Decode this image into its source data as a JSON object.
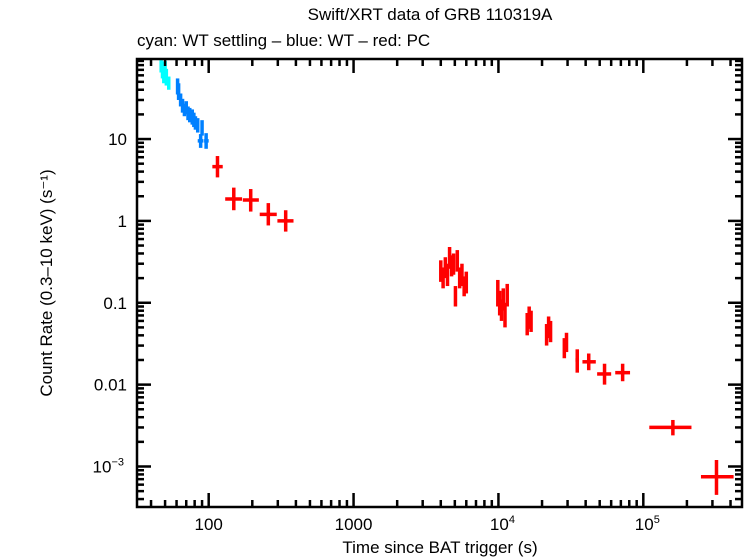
{
  "chart_data": {
    "type": "scatter",
    "title": "Swift/XRT data of GRB 110319A",
    "subtitle": "cyan: WT settling – blue: WT – red: PC",
    "xlabel": "Time since BAT trigger (s)",
    "ylabel": "Count Rate (0.3–10 keV) (s⁻¹)",
    "xscale": "log",
    "yscale": "log",
    "xlim": [
      32,
      480000
    ],
    "ylim": [
      0.00032,
      95
    ],
    "grid": false,
    "legend": "none",
    "x_ticks": [
      {
        "value": 100,
        "label": "100",
        "sup": ""
      },
      {
        "value": 1000,
        "label": "1000",
        "sup": ""
      },
      {
        "value": 10000,
        "label": "10",
        "sup": "4"
      },
      {
        "value": 100000,
        "label": "10",
        "sup": "5"
      }
    ],
    "y_ticks": [
      {
        "value": 10,
        "label": "10",
        "sup": ""
      },
      {
        "value": 1,
        "label": "1",
        "sup": ""
      },
      {
        "value": 0.1,
        "label": "0.1",
        "sup": ""
      },
      {
        "value": 0.01,
        "label": "0.01",
        "sup": ""
      },
      {
        "value": 0.001,
        "label": "10",
        "sup": "−3"
      }
    ],
    "series": [
      {
        "name": "WT settling",
        "color": "#00ffff",
        "points": [
          {
            "t": 47,
            "tlo": 46,
            "thi": 48,
            "r": 80,
            "rlo": 65,
            "rhi": 92
          },
          {
            "t": 48,
            "tlo": 47,
            "thi": 49,
            "r": 70,
            "rlo": 55,
            "rhi": 88
          },
          {
            "t": 49,
            "tlo": 48,
            "thi": 50,
            "r": 62,
            "rlo": 48,
            "rhi": 80
          },
          {
            "t": 50,
            "tlo": 49,
            "thi": 51,
            "r": 75,
            "rlo": 60,
            "rhi": 90
          },
          {
            "t": 51,
            "tlo": 50,
            "thi": 52,
            "r": 58,
            "rlo": 45,
            "rhi": 72
          },
          {
            "t": 53,
            "tlo": 52,
            "thi": 54,
            "r": 48,
            "rlo": 40,
            "rhi": 58
          }
        ]
      },
      {
        "name": "WT",
        "color": "#0080ff",
        "points": [
          {
            "t": 61,
            "tlo": 60,
            "thi": 62,
            "r": 45,
            "rlo": 35,
            "rhi": 55
          },
          {
            "t": 62,
            "tlo": 61,
            "thi": 63,
            "r": 38,
            "rlo": 30,
            "rhi": 48
          },
          {
            "t": 64,
            "tlo": 63,
            "thi": 65,
            "r": 30,
            "rlo": 25,
            "rhi": 36
          },
          {
            "t": 66,
            "tlo": 65,
            "thi": 67,
            "r": 26,
            "rlo": 21,
            "rhi": 31
          },
          {
            "t": 68,
            "tlo": 67,
            "thi": 69,
            "r": 23,
            "rlo": 19,
            "rhi": 27
          },
          {
            "t": 70,
            "tlo": 69,
            "thi": 71,
            "r": 24,
            "rlo": 20,
            "rhi": 29
          },
          {
            "t": 72,
            "tlo": 71,
            "thi": 73,
            "r": 21,
            "rlo": 17,
            "rhi": 25
          },
          {
            "t": 74,
            "tlo": 73,
            "thi": 75,
            "r": 20,
            "rlo": 16,
            "rhi": 24
          },
          {
            "t": 77,
            "tlo": 76,
            "thi": 78,
            "r": 19,
            "rlo": 15,
            "rhi": 23
          },
          {
            "t": 79,
            "tlo": 78,
            "thi": 80,
            "r": 17,
            "rlo": 14,
            "rhi": 21
          },
          {
            "t": 81,
            "tlo": 80,
            "thi": 82,
            "r": 16,
            "rlo": 13,
            "rhi": 19
          },
          {
            "t": 84,
            "tlo": 83,
            "thi": 85,
            "r": 15,
            "rlo": 12,
            "rhi": 18
          },
          {
            "t": 90,
            "tlo": 88,
            "thi": 92,
            "r": 14,
            "rlo": 11,
            "rhi": 17
          },
          {
            "t": 88,
            "tlo": 84,
            "thi": 92,
            "r": 9.5,
            "rlo": 7.8,
            "rhi": 11.5
          },
          {
            "t": 96,
            "tlo": 93,
            "thi": 100,
            "r": 9.5,
            "rlo": 7.6,
            "rhi": 11.8
          }
        ]
      },
      {
        "name": "PC",
        "color": "#ff0000",
        "points": [
          {
            "t": 115,
            "tlo": 106,
            "thi": 125,
            "r": 4.6,
            "rlo": 3.4,
            "rhi": 6.2
          },
          {
            "t": 149,
            "tlo": 130,
            "thi": 170,
            "r": 1.85,
            "rlo": 1.35,
            "rhi": 2.55
          },
          {
            "t": 195,
            "tlo": 172,
            "thi": 222,
            "r": 1.8,
            "rlo": 1.3,
            "rhi": 2.45
          },
          {
            "t": 258,
            "tlo": 225,
            "thi": 295,
            "r": 1.2,
            "rlo": 0.88,
            "rhi": 1.65
          },
          {
            "t": 340,
            "tlo": 298,
            "thi": 385,
            "r": 1.0,
            "rlo": 0.74,
            "rhi": 1.35
          },
          {
            "t": 4000,
            "tlo": 3950,
            "thi": 4050,
            "r": 0.25,
            "rlo": 0.18,
            "rhi": 0.33
          },
          {
            "t": 4150,
            "tlo": 4100,
            "thi": 4200,
            "r": 0.2,
            "rlo": 0.15,
            "rhi": 0.27
          },
          {
            "t": 4300,
            "tlo": 4250,
            "thi": 4350,
            "r": 0.27,
            "rlo": 0.2,
            "rhi": 0.36
          },
          {
            "t": 4450,
            "tlo": 4400,
            "thi": 4500,
            "r": 0.22,
            "rlo": 0.16,
            "rhi": 0.3
          },
          {
            "t": 4600,
            "tlo": 4550,
            "thi": 4650,
            "r": 0.35,
            "rlo": 0.26,
            "rhi": 0.48
          },
          {
            "t": 4750,
            "tlo": 4700,
            "thi": 4800,
            "r": 0.28,
            "rlo": 0.21,
            "rhi": 0.38
          },
          {
            "t": 4900,
            "tlo": 4850,
            "thi": 4950,
            "r": 0.3,
            "rlo": 0.22,
            "rhi": 0.4
          },
          {
            "t": 5050,
            "tlo": 5000,
            "thi": 5100,
            "r": 0.12,
            "rlo": 0.09,
            "rhi": 0.16
          },
          {
            "t": 5200,
            "tlo": 5150,
            "thi": 5250,
            "r": 0.33,
            "rlo": 0.24,
            "rhi": 0.44
          },
          {
            "t": 5400,
            "tlo": 5350,
            "thi": 5450,
            "r": 0.2,
            "rlo": 0.15,
            "rhi": 0.27
          },
          {
            "t": 5600,
            "tlo": 5550,
            "thi": 5650,
            "r": 0.22,
            "rlo": 0.16,
            "rhi": 0.3
          },
          {
            "t": 5800,
            "tlo": 5750,
            "thi": 5850,
            "r": 0.16,
            "rlo": 0.12,
            "rhi": 0.21
          },
          {
            "t": 6000,
            "tlo": 5950,
            "thi": 6050,
            "r": 0.18,
            "rlo": 0.13,
            "rhi": 0.24
          },
          {
            "t": 9900,
            "tlo": 9850,
            "thi": 9950,
            "r": 0.13,
            "rlo": 0.09,
            "rhi": 0.19
          },
          {
            "t": 10200,
            "tlo": 10150,
            "thi": 10250,
            "r": 0.1,
            "rlo": 0.07,
            "rhi": 0.14
          },
          {
            "t": 10500,
            "tlo": 10450,
            "thi": 10550,
            "r": 0.08,
            "rlo": 0.06,
            "rhi": 0.11
          },
          {
            "t": 10800,
            "tlo": 10750,
            "thi": 10850,
            "r": 0.11,
            "rlo": 0.08,
            "rhi": 0.15
          },
          {
            "t": 11100,
            "tlo": 11050,
            "thi": 11150,
            "r": 0.07,
            "rlo": 0.05,
            "rhi": 0.1
          },
          {
            "t": 11500,
            "tlo": 11450,
            "thi": 11550,
            "r": 0.12,
            "rlo": 0.09,
            "rhi": 0.17
          },
          {
            "t": 15800,
            "tlo": 15700,
            "thi": 15900,
            "r": 0.055,
            "rlo": 0.04,
            "rhi": 0.075
          },
          {
            "t": 16300,
            "tlo": 16200,
            "thi": 16400,
            "r": 0.065,
            "rlo": 0.048,
            "rhi": 0.09
          },
          {
            "t": 16800,
            "tlo": 16700,
            "thi": 16900,
            "r": 0.06,
            "rlo": 0.044,
            "rhi": 0.08
          },
          {
            "t": 21500,
            "tlo": 21400,
            "thi": 21600,
            "r": 0.04,
            "rlo": 0.03,
            "rhi": 0.055
          },
          {
            "t": 22200,
            "tlo": 22100,
            "thi": 22300,
            "r": 0.05,
            "rlo": 0.037,
            "rhi": 0.068
          },
          {
            "t": 22900,
            "tlo": 22800,
            "thi": 23000,
            "r": 0.045,
            "rlo": 0.033,
            "rhi": 0.06
          },
          {
            "t": 28500,
            "tlo": 28200,
            "thi": 28800,
            "r": 0.028,
            "rlo": 0.021,
            "rhi": 0.037
          },
          {
            "t": 29500,
            "tlo": 29200,
            "thi": 29800,
            "r": 0.033,
            "rlo": 0.025,
            "rhi": 0.043
          },
          {
            "t": 35000,
            "tlo": 34000,
            "thi": 36000,
            "r": 0.02,
            "rlo": 0.014,
            "rhi": 0.027
          },
          {
            "t": 42000,
            "tlo": 38000,
            "thi": 47000,
            "r": 0.019,
            "rlo": 0.015,
            "rhi": 0.024
          },
          {
            "t": 54000,
            "tlo": 48000,
            "thi": 60000,
            "r": 0.0135,
            "rlo": 0.01,
            "rhi": 0.018
          },
          {
            "t": 72000,
            "tlo": 64000,
            "thi": 81000,
            "r": 0.014,
            "rlo": 0.011,
            "rhi": 0.018
          },
          {
            "t": 160000,
            "tlo": 110000,
            "thi": 215000,
            "r": 0.003,
            "rlo": 0.0024,
            "rhi": 0.0037
          },
          {
            "t": 320000,
            "tlo": 250000,
            "thi": 420000,
            "r": 0.00075,
            "rlo": 0.00045,
            "rhi": 0.0012
          }
        ]
      }
    ]
  }
}
